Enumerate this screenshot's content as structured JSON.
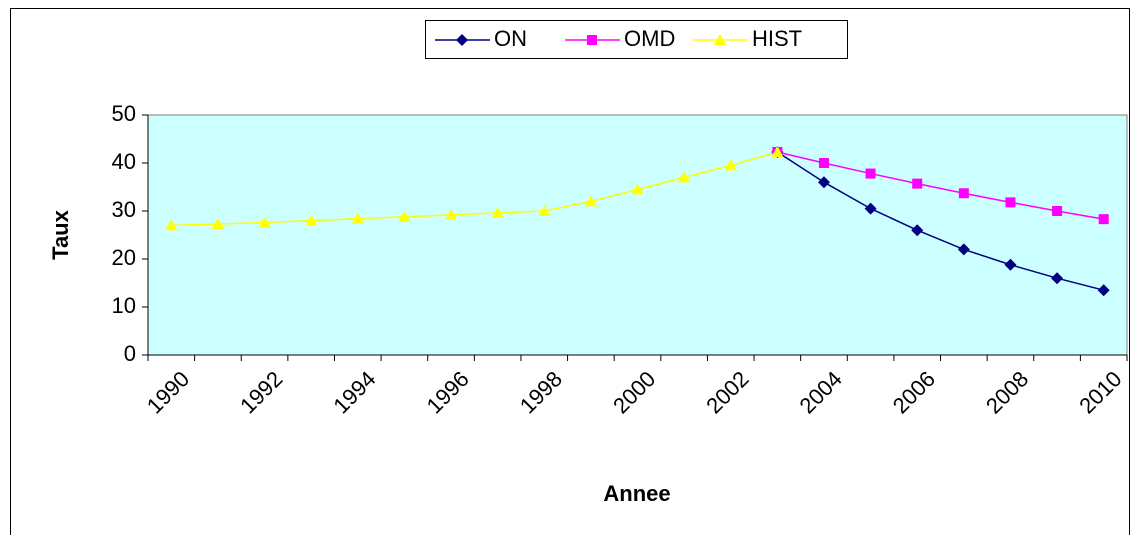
{
  "chart_data": {
    "type": "line",
    "x_label": "Annee",
    "y_label": "Taux",
    "categories": [
      "1990",
      null,
      "1992",
      null,
      "1994",
      null,
      "1996",
      null,
      "1998",
      null,
      "2000",
      null,
      "2002",
      null,
      "2004",
      null,
      "2006",
      null,
      "2008",
      null,
      "2010"
    ],
    "series": [
      {
        "name": "ON",
        "color": "#000080",
        "marker": "diamond",
        "values": [
          null,
          null,
          null,
          null,
          null,
          null,
          null,
          null,
          null,
          null,
          null,
          null,
          null,
          42.3,
          36,
          30.5,
          26,
          22,
          18.8,
          16,
          13.5
        ]
      },
      {
        "name": "OMD",
        "color": "#ff00ff",
        "marker": "square",
        "values": [
          null,
          null,
          null,
          null,
          null,
          null,
          null,
          null,
          null,
          null,
          null,
          null,
          null,
          42.3,
          40,
          37.8,
          35.7,
          33.7,
          31.8,
          30,
          28.3
        ]
      },
      {
        "name": "HIST",
        "color": "#ffff00",
        "marker": "triangle",
        "values": [
          27,
          27.3,
          27.6,
          28,
          28.4,
          28.8,
          29.2,
          29.6,
          30,
          32,
          34.5,
          37,
          39.5,
          42.3,
          null,
          null,
          null,
          null,
          null,
          null,
          null
        ]
      }
    ],
    "ylim": [
      0,
      50
    ],
    "yticks": [
      0,
      10,
      20,
      30,
      40,
      50
    ],
    "plot_background": "#ccffff",
    "legend": "top"
  }
}
